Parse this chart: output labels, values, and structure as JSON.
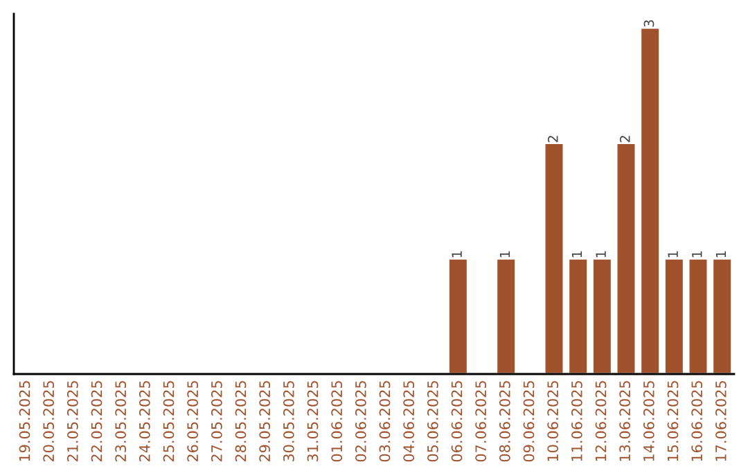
{
  "chart_data": {
    "type": "bar",
    "categories": [
      "19.05.2025",
      "20.05.2025",
      "21.05.2025",
      "22.05.2025",
      "23.05.2025",
      "24.05.2025",
      "25.05.2025",
      "26.05.2025",
      "27.05.2025",
      "28.05.2025",
      "29.05.2025",
      "30.05.2025",
      "31.05.2025",
      "01.06.2025",
      "02.06.2025",
      "03.06.2025",
      "04.06.2025",
      "05.06.2025",
      "06.06.2025",
      "07.06.2025",
      "08.06.2025",
      "09.06.2025",
      "10.06.2025",
      "11.06.2025",
      "12.06.2025",
      "13.06.2025",
      "14.06.2025",
      "15.06.2025",
      "16.06.2025",
      "17.06.2025"
    ],
    "series": [
      {
        "color": "#a0522d",
        "values": [
          null,
          null,
          null,
          null,
          null,
          null,
          null,
          null,
          null,
          null,
          null,
          null,
          null,
          null,
          null,
          null,
          null,
          null,
          1,
          null,
          1,
          null,
          2,
          1,
          1,
          2,
          3,
          1,
          1,
          1
        ],
        "value_labels": [
          null,
          null,
          null,
          null,
          null,
          null,
          null,
          null,
          null,
          null,
          null,
          null,
          null,
          null,
          null,
          null,
          null,
          null,
          "1",
          null,
          "1",
          null,
          "2",
          "1",
          "1",
          "2",
          "3",
          "1",
          "1",
          "1"
        ]
      }
    ],
    "ylim": [
      0,
      3.12
    ],
    "tick_labels": "x",
    "grid": false,
    "legend": false
  }
}
